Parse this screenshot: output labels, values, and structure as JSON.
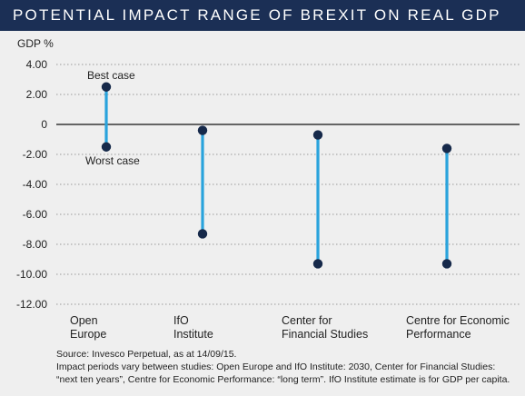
{
  "title": "POTENTIAL IMPACT RANGE OF BREXIT ON REAL GDP",
  "colors": {
    "header_bg": "#1b2f55",
    "range_line": "#29a3dc",
    "marker": "#16294a",
    "gridline": "#9a9a9a"
  },
  "chart_data": {
    "type": "range",
    "ylabel": "GDP %",
    "ylim": [
      -12,
      4
    ],
    "yticks": [
      4,
      2,
      0,
      -2,
      -4,
      -6,
      -8,
      -10,
      -12
    ],
    "ytick_labels": [
      "4.00",
      "2.00",
      "0",
      "-2.00",
      "-4.00",
      "-6.00",
      "-8.00",
      "-10.00",
      "-12.00"
    ],
    "grid": "dotted horizontal",
    "categories": [
      [
        "Open",
        "Europe"
      ],
      [
        "IfO",
        "Institute"
      ],
      [
        "Center for",
        "Financial Studies"
      ],
      [
        "Centre for Economic",
        "Performance"
      ]
    ],
    "high": [
      2.5,
      -0.4,
      -0.7,
      -1.6
    ],
    "low": [
      -1.5,
      -7.3,
      -9.3,
      -9.3
    ],
    "annotations": {
      "best": "Best case",
      "worst": "Worst case"
    }
  },
  "notes": [
    "Source: Invesco Perpetual, as at 14/09/15.",
    "Impact periods vary between studies: Open Europe and IfO Institute: 2030, Center for Financial Studies:",
    "“next ten years”, Centre for Economic Performance: “long term”. IfO Institute estimate is for GDP per capita."
  ]
}
